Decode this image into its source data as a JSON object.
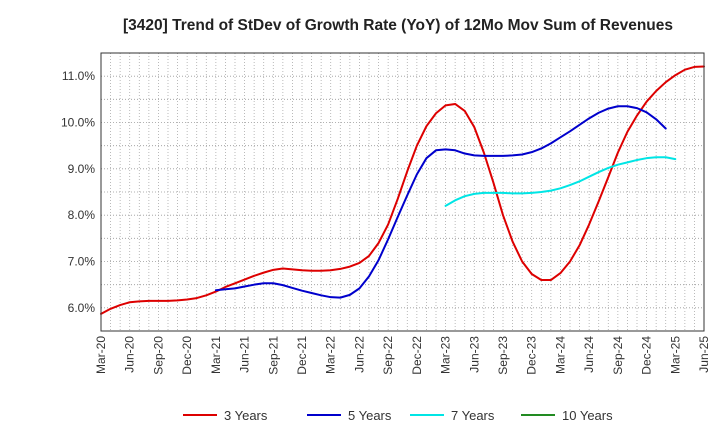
{
  "chart_data": {
    "type": "line",
    "title": "[3420]  Trend of StDev of Growth Rate (YoY) of 12Mo Mov Sum of Revenues",
    "xlabel": "",
    "ylabel": "",
    "ylim": [
      5.5,
      11.5
    ],
    "y_ticks": [
      {
        "value": 6.0,
        "label": "6.0%"
      },
      {
        "value": 7.0,
        "label": "7.0%"
      },
      {
        "value": 8.0,
        "label": "8.0%"
      },
      {
        "value": 9.0,
        "label": "9.0%"
      },
      {
        "value": 10.0,
        "label": "10.0%"
      },
      {
        "value": 11.0,
        "label": "11.0%"
      }
    ],
    "x_tick_labels": [
      "Mar-20",
      "Jun-20",
      "Sep-20",
      "Dec-20",
      "Mar-21",
      "Jun-21",
      "Sep-21",
      "Dec-21",
      "Mar-22",
      "Jun-22",
      "Sep-22",
      "Dec-22",
      "Mar-23",
      "Jun-23",
      "Sep-23",
      "Dec-23",
      "Mar-24",
      "Jun-24",
      "Sep-24",
      "Dec-24",
      "Mar-25",
      "Jun-25"
    ],
    "x_range_months": [
      0,
      63
    ],
    "grid": true,
    "legend_position": "bottom",
    "series": [
      {
        "name": "3 Years",
        "color": "#dd0000",
        "start_month": 0,
        "values": [
          5.87,
          5.98,
          6.06,
          6.12,
          6.14,
          6.15,
          6.15,
          6.15,
          6.16,
          6.18,
          6.21,
          6.27,
          6.35,
          6.45,
          6.53,
          6.61,
          6.69,
          6.76,
          6.82,
          6.85,
          6.83,
          6.81,
          6.8,
          6.8,
          6.81,
          6.84,
          6.89,
          6.97,
          7.12,
          7.4,
          7.8,
          8.35,
          8.95,
          9.5,
          9.92,
          10.2,
          10.37,
          10.4,
          10.25,
          9.9,
          9.35,
          8.7,
          8.0,
          7.43,
          7.0,
          6.73,
          6.6,
          6.6,
          6.75,
          7.0,
          7.35,
          7.8,
          8.3,
          8.82,
          9.35,
          9.8,
          10.15,
          10.45,
          10.68,
          10.87,
          11.02,
          11.14,
          11.2,
          11.21
        ]
      },
      {
        "name": "5 Years",
        "color": "#0000cc",
        "start_month": 12,
        "values": [
          6.38,
          6.4,
          6.42,
          6.46,
          6.5,
          6.53,
          6.53,
          6.49,
          6.43,
          6.37,
          6.32,
          6.27,
          6.23,
          6.22,
          6.28,
          6.42,
          6.68,
          7.03,
          7.48,
          7.96,
          8.43,
          8.88,
          9.23,
          9.4,
          9.42,
          9.4,
          9.33,
          9.29,
          9.28,
          9.28,
          9.28,
          9.29,
          9.31,
          9.36,
          9.44,
          9.55,
          9.68,
          9.81,
          9.95,
          10.09,
          10.21,
          10.3,
          10.35,
          10.35,
          10.31,
          10.22,
          10.07,
          9.87
        ]
      },
      {
        "name": "7 Years",
        "color": "#00e5e5",
        "start_month": 36,
        "values": [
          8.2,
          8.32,
          8.41,
          8.46,
          8.48,
          8.48,
          8.48,
          8.47,
          8.47,
          8.48,
          8.5,
          8.53,
          8.58,
          8.65,
          8.73,
          8.83,
          8.93,
          9.02,
          9.09,
          9.14,
          9.19,
          9.23,
          9.25,
          9.25,
          9.21
        ]
      },
      {
        "name": "10 Years",
        "color": "#228b22",
        "start_month": 0,
        "values": []
      }
    ]
  }
}
